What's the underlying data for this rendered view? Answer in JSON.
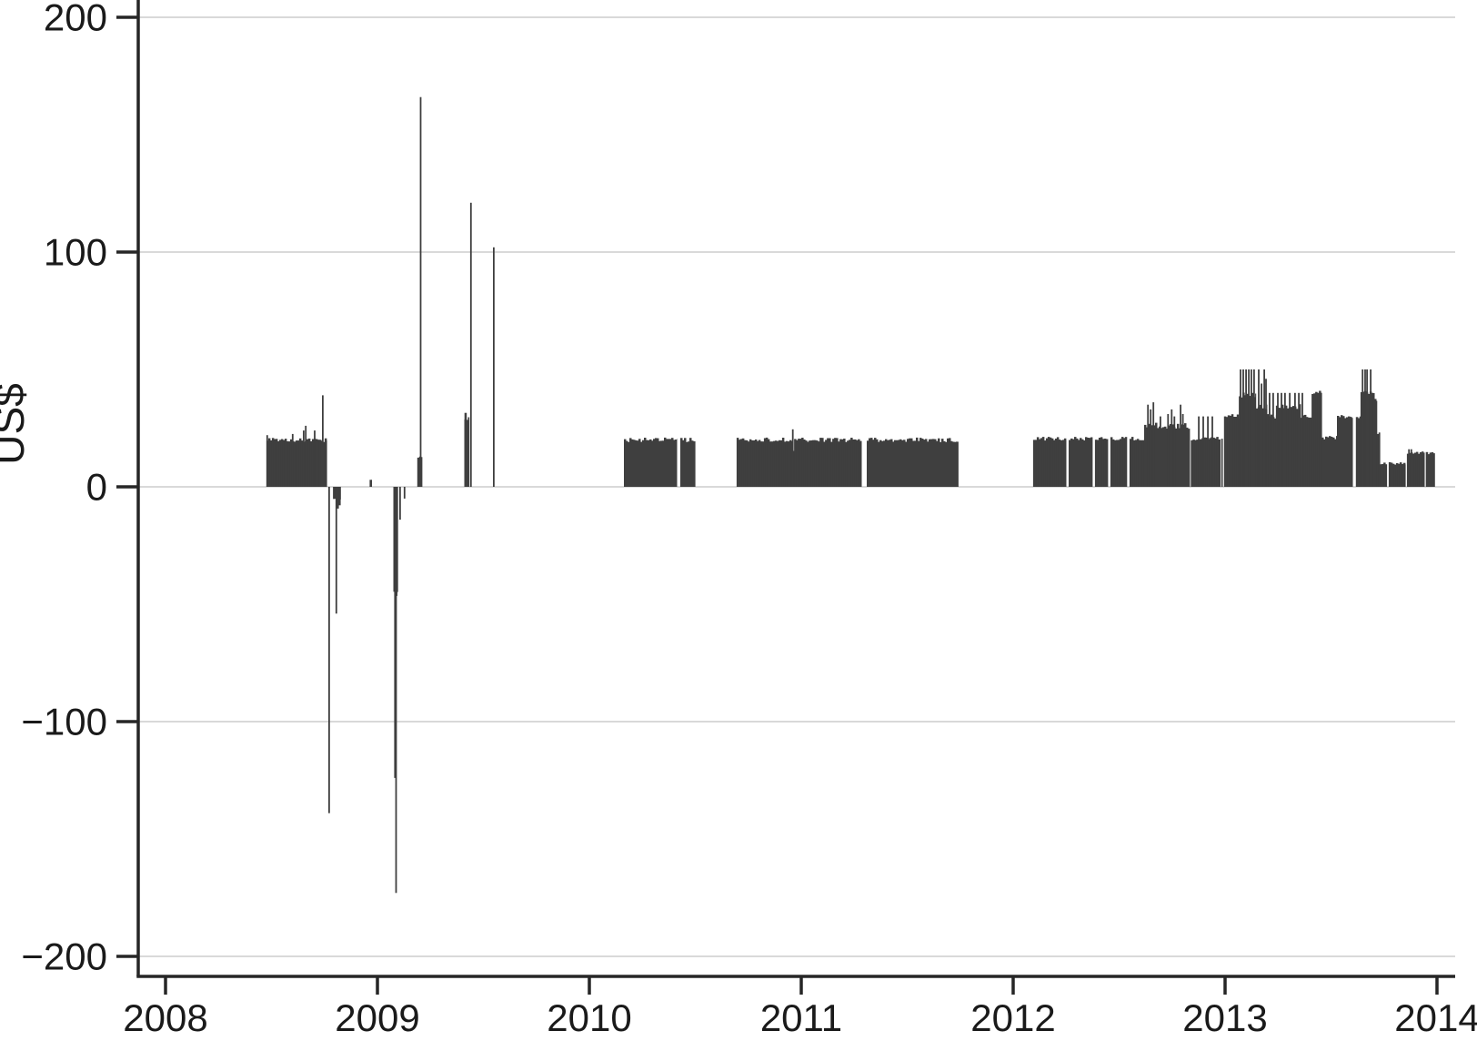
{
  "chart_data": {
    "type": "bar",
    "title": "",
    "xlabel": "",
    "ylabel": "US$",
    "legend": "none",
    "grid": "horizontal",
    "x_axis": {
      "min": 2007.87,
      "max": 2014.1,
      "ticks": [
        {
          "value": 2008,
          "label": "2008"
        },
        {
          "value": 2009,
          "label": "2009"
        },
        {
          "value": 2010,
          "label": "2010"
        },
        {
          "value": 2011,
          "label": "2011"
        },
        {
          "value": 2012,
          "label": "2012"
        },
        {
          "value": 2013,
          "label": "2013"
        },
        {
          "value": 2014,
          "label": "2014"
        }
      ]
    },
    "y_axis": {
      "min": -208,
      "max": 207,
      "ticks": [
        {
          "value": 200,
          "label": "200"
        },
        {
          "value": 100,
          "label": "100"
        },
        {
          "value": 0,
          "label": "0"
        },
        {
          "value": -100,
          "label": "−100"
        },
        {
          "value": -200,
          "label": "−200"
        }
      ]
    },
    "colors": {
      "bar": "#3f3f3f",
      "grid": "#d9d9d9",
      "axis": "#262626",
      "text": "#1a1a1a",
      "background": "#ffffff"
    },
    "bar_segments": [
      {
        "from": 2008.476,
        "to": 2008.76,
        "value": 20,
        "jitter": 1.0
      },
      {
        "from": 2008.79,
        "to": 2008.825,
        "value": -7,
        "jitter": 2.5
      },
      {
        "from": 2008.963,
        "to": 2008.972,
        "value": 3,
        "jitter": 0
      },
      {
        "from": 2009.075,
        "to": 2009.095,
        "value": -45,
        "jitter": 1.5
      },
      {
        "from": 2009.188,
        "to": 2009.21,
        "value": 13,
        "jitter": 0.8
      },
      {
        "from": 2009.41,
        "to": 2009.432,
        "value": 29,
        "jitter": 1.0
      },
      {
        "from": 2010.163,
        "to": 2010.412,
        "value": 20,
        "jitter": 1.0
      },
      {
        "from": 2010.429,
        "to": 2010.498,
        "value": 20,
        "jitter": 1.0
      },
      {
        "from": 2010.695,
        "to": 2010.958,
        "value": 20,
        "jitter": 1.0
      },
      {
        "from": 2010.958,
        "to": 2010.966,
        "value": 15,
        "jitter": 0.4
      },
      {
        "from": 2010.966,
        "to": 2011.283,
        "value": 20,
        "jitter": 1.0
      },
      {
        "from": 2011.309,
        "to": 2011.74,
        "value": 20,
        "jitter": 1.0
      },
      {
        "from": 2012.094,
        "to": 2012.249,
        "value": 20.5,
        "jitter": 0.8
      },
      {
        "from": 2012.262,
        "to": 2012.373,
        "value": 20.5,
        "jitter": 0.8
      },
      {
        "from": 2012.386,
        "to": 2012.446,
        "value": 20.5,
        "jitter": 0.8
      },
      {
        "from": 2012.459,
        "to": 2012.536,
        "value": 20.5,
        "jitter": 0.8
      },
      {
        "from": 2012.549,
        "to": 2012.618,
        "value": 20.5,
        "jitter": 0.8
      },
      {
        "from": 2012.618,
        "to": 2012.832,
        "value": 26,
        "jitter": 1.4
      },
      {
        "from": 2012.838,
        "to": 2012.976,
        "value": 20.5,
        "jitter": 0.8
      },
      {
        "from": 2012.982,
        "to": 2012.987,
        "value": 20.5,
        "jitter": 0
      },
      {
        "from": 2012.995,
        "to": 2013.065,
        "value": 30,
        "jitter": 1.2
      },
      {
        "from": 2013.065,
        "to": 2013.145,
        "value": 39,
        "jitter": 1.2
      },
      {
        "from": 2013.145,
        "to": 2013.197,
        "value": 34,
        "jitter": 1.2
      },
      {
        "from": 2013.197,
        "to": 2013.24,
        "value": 30,
        "jitter": 1.2
      },
      {
        "from": 2013.24,
        "to": 2013.356,
        "value": 34,
        "jitter": 1.2
      },
      {
        "from": 2013.356,
        "to": 2013.408,
        "value": 30,
        "jitter": 1.0
      },
      {
        "from": 2013.408,
        "to": 2013.455,
        "value": 40,
        "jitter": 1.0
      },
      {
        "from": 2013.455,
        "to": 2013.528,
        "value": 21,
        "jitter": 1.0
      },
      {
        "from": 2013.528,
        "to": 2013.601,
        "value": 30,
        "jitter": 0.8
      },
      {
        "from": 2013.617,
        "to": 2013.639,
        "value": 30,
        "jitter": 0.8
      },
      {
        "from": 2013.639,
        "to": 2013.704,
        "value": 40,
        "jitter": 1.0
      },
      {
        "from": 2013.704,
        "to": 2013.716,
        "value": 37,
        "jitter": 0.5
      },
      {
        "from": 2013.716,
        "to": 2013.73,
        "value": 23,
        "jitter": 0.5
      },
      {
        "from": 2013.73,
        "to": 2013.762,
        "value": 10,
        "jitter": 0.5
      },
      {
        "from": 2013.772,
        "to": 2013.85,
        "value": 10,
        "jitter": 0.6
      },
      {
        "from": 2013.858,
        "to": 2013.94,
        "value": 14.5,
        "jitter": 0.6
      },
      {
        "from": 2013.947,
        "to": 2013.988,
        "value": 14.5,
        "jitter": 0.6
      }
    ],
    "spike_bars": [
      {
        "year": 2008.48,
        "value": 22
      },
      {
        "year": 2008.6,
        "value": 22.5
      },
      {
        "year": 2008.652,
        "value": 24
      },
      {
        "year": 2008.662,
        "value": 26
      },
      {
        "year": 2008.704,
        "value": 24
      },
      {
        "year": 2008.742,
        "value": 39
      },
      {
        "year": 2008.772,
        "value": -139
      },
      {
        "year": 2008.806,
        "value": -54
      },
      {
        "year": 2009.083,
        "value": -124
      },
      {
        "year": 2009.088,
        "value": -173
      },
      {
        "year": 2009.107,
        "value": -14
      },
      {
        "year": 2009.128,
        "value": -5
      },
      {
        "year": 2009.204,
        "value": 166
      },
      {
        "year": 2009.416,
        "value": 31.5,
        "w": 2.5
      },
      {
        "year": 2009.441,
        "value": 121
      },
      {
        "year": 2009.549,
        "value": 102
      },
      {
        "year": 2010.96,
        "value": 24.5
      },
      {
        "year": 2012.636,
        "value": 35
      },
      {
        "year": 2012.649,
        "value": 33
      },
      {
        "year": 2012.662,
        "value": 36
      },
      {
        "year": 2012.695,
        "value": 30
      },
      {
        "year": 2012.731,
        "value": 31
      },
      {
        "year": 2012.748,
        "value": 33
      },
      {
        "year": 2012.761,
        "value": 30
      },
      {
        "year": 2012.79,
        "value": 35
      },
      {
        "year": 2012.801,
        "value": 31
      },
      {
        "year": 2012.876,
        "value": 30
      },
      {
        "year": 2012.897,
        "value": 30
      },
      {
        "year": 2012.919,
        "value": 30
      },
      {
        "year": 2012.94,
        "value": 30
      },
      {
        "year": 2013.073,
        "value": 50
      },
      {
        "year": 2013.086,
        "value": 50
      },
      {
        "year": 2013.099,
        "value": 50
      },
      {
        "year": 2013.112,
        "value": 50
      },
      {
        "year": 2013.124,
        "value": 50
      },
      {
        "year": 2013.137,
        "value": 50
      },
      {
        "year": 2013.159,
        "value": 50
      },
      {
        "year": 2013.172,
        "value": 44
      },
      {
        "year": 2013.185,
        "value": 50
      },
      {
        "year": 2013.193,
        "value": 46
      },
      {
        "year": 2013.21,
        "value": 40
      },
      {
        "year": 2013.227,
        "value": 40
      },
      {
        "year": 2013.249,
        "value": 40
      },
      {
        "year": 2013.266,
        "value": 40
      },
      {
        "year": 2013.283,
        "value": 40
      },
      {
        "year": 2013.305,
        "value": 40
      },
      {
        "year": 2013.33,
        "value": 40
      },
      {
        "year": 2013.348,
        "value": 40
      },
      {
        "year": 2013.365,
        "value": 40
      },
      {
        "year": 2013.649,
        "value": 50
      },
      {
        "year": 2013.661,
        "value": 50
      },
      {
        "year": 2013.67,
        "value": 50
      },
      {
        "year": 2013.687,
        "value": 50
      },
      {
        "year": 2013.868,
        "value": 16
      },
      {
        "year": 2013.879,
        "value": 16
      }
    ]
  }
}
